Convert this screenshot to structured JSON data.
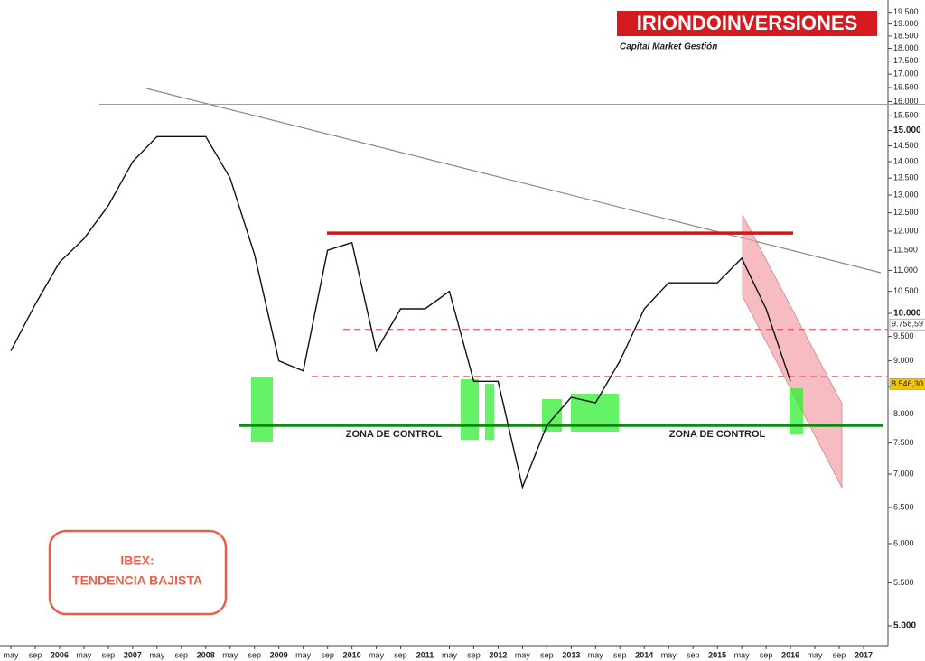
{
  "chart_data": {
    "type": "line",
    "log_scale": true,
    "brand": "IRIONDOINVERSIONES",
    "tagline": "Capital Market Gestión",
    "badge": [
      "IBEX:",
      "TENDENCIA BAJISTA"
    ],
    "zone_labels": [
      "ZONA DE CONTROL",
      "ZONA DE CONTROL"
    ],
    "categories": [
      "may",
      "sep",
      "2006",
      "may",
      "sep",
      "2007",
      "may",
      "sep",
      "2008",
      "may",
      "sep",
      "2009",
      "may",
      "sep",
      "2010",
      "may",
      "sep",
      "2011",
      "may",
      "sep",
      "2012",
      "may",
      "sep",
      "2013",
      "may",
      "sep",
      "2014",
      "may",
      "sep",
      "2015",
      "may",
      "sep",
      "2016",
      "may",
      "sep",
      "2017"
    ],
    "series": [
      {
        "name": "IBEX",
        "color": "#111111",
        "values": [
          9200,
          10200,
          11200,
          11800,
          12700,
          14000,
          14800,
          14800,
          14800,
          13500,
          11400,
          9000,
          8800,
          11500,
          11700,
          9200,
          10100,
          10100,
          10500,
          8600,
          8600,
          6800,
          7800,
          8300,
          8200,
          9000,
          10100,
          10700,
          10700,
          10700,
          11300,
          10100,
          8600,
          null,
          null,
          null
        ]
      }
    ],
    "hlines": [
      {
        "value": 15900,
        "color": "#f08080",
        "dashed": false
      },
      {
        "value": 11950,
        "color": "#e01010",
        "dashed": false
      },
      {
        "value": 7800,
        "color": "#108a10",
        "dashed": false
      },
      {
        "value": 9650,
        "color": "#e04040",
        "dashed": true
      },
      {
        "value": 8700,
        "color": "#f08080",
        "dashed": true
      }
    ],
    "price_labels": [
      {
        "value": 9758.59,
        "label": "9.758,59"
      },
      {
        "value": 8546.3,
        "label": "8.546,30"
      }
    ],
    "ylim": [
      4800,
      20000
    ],
    "yticks": [
      {
        "value": 5000,
        "label": "5.000"
      },
      {
        "value": 5500,
        "label": "5.500"
      },
      {
        "value": 6000,
        "label": "6.000"
      },
      {
        "value": 6500,
        "label": "6.500"
      },
      {
        "value": 7000,
        "label": "7.000"
      },
      {
        "value": 7500,
        "label": "7.500"
      },
      {
        "value": 8000,
        "label": "8.000"
      },
      {
        "value": 8500,
        "label": "8.500"
      },
      {
        "value": 9000,
        "label": "9.000"
      },
      {
        "value": 9500,
        "label": "9.500"
      },
      {
        "value": 10000,
        "label": "10.000"
      },
      {
        "value": 10500,
        "label": "10.500"
      },
      {
        "value": 11000,
        "label": "11.000"
      },
      {
        "value": 11500,
        "label": "11.500"
      },
      {
        "value": 12000,
        "label": "12.000"
      },
      {
        "value": 12500,
        "label": "12.500"
      },
      {
        "value": 13000,
        "label": "13.000"
      },
      {
        "value": 13500,
        "label": "13.500"
      },
      {
        "value": 14000,
        "label": "14.000"
      },
      {
        "value": 14500,
        "label": "14.500"
      },
      {
        "value": 15000,
        "label": "15.000"
      },
      {
        "value": 15500,
        "label": "15.500"
      },
      {
        "value": 16000,
        "label": "16.000"
      },
      {
        "value": 16500,
        "label": "16.500"
      },
      {
        "value": 17000,
        "label": "17.000"
      },
      {
        "value": 17500,
        "label": "17.500"
      },
      {
        "value": 18000,
        "label": "18.000"
      },
      {
        "value": 18500,
        "label": "18.500"
      },
      {
        "value": 19000,
        "label": "19.000"
      },
      {
        "value": 19500,
        "label": "19.500"
      }
    ]
  }
}
